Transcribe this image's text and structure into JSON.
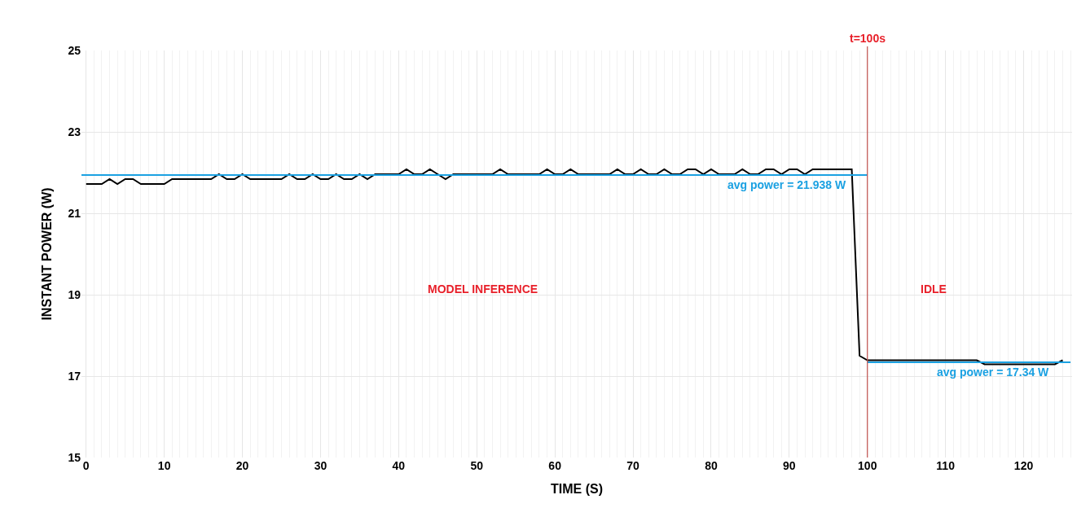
{
  "chart_data": {
    "type": "line",
    "xlabel": "TIME (S)",
    "ylabel": "INSTANT POWER (W)",
    "xlim": [
      -0.6,
      126.2
    ],
    "ylim": [
      15,
      25
    ],
    "xticks": [
      0,
      10,
      20,
      30,
      40,
      50,
      60,
      70,
      80,
      90,
      100,
      110,
      120
    ],
    "yticks": [
      15,
      17,
      19,
      21,
      23,
      25
    ],
    "grid": true,
    "legend": false,
    "marker": "none",
    "line_style": "solid",
    "series": [
      {
        "color": "#000000",
        "x": [
          0,
          1,
          2,
          3,
          4,
          5,
          6,
          7,
          8,
          9,
          10,
          11,
          12,
          13,
          14,
          15,
          16,
          17,
          18,
          19,
          20,
          21,
          22,
          23,
          24,
          25,
          26,
          27,
          28,
          29,
          30,
          31,
          32,
          33,
          34,
          35,
          36,
          37,
          38,
          39,
          40,
          41,
          42,
          43,
          44,
          45,
          46,
          47,
          48,
          49,
          50,
          51,
          52,
          53,
          54,
          55,
          56,
          57,
          58,
          59,
          60,
          61,
          62,
          63,
          64,
          65,
          66,
          67,
          68,
          69,
          70,
          71,
          72,
          73,
          74,
          75,
          76,
          77,
          78,
          79,
          80,
          81,
          82,
          83,
          84,
          85,
          86,
          87,
          88,
          89,
          90,
          91,
          92,
          93,
          94,
          95,
          96,
          97,
          98,
          99,
          100,
          101,
          102,
          103,
          104,
          105,
          106,
          107,
          108,
          109,
          110,
          111,
          112,
          113,
          114,
          115,
          116,
          117,
          118,
          119,
          120,
          121,
          122,
          123,
          124,
          125
        ],
        "values": [
          21.72,
          21.72,
          21.72,
          21.84,
          21.72,
          21.84,
          21.84,
          21.72,
          21.72,
          21.72,
          21.72,
          21.84,
          21.84,
          21.84,
          21.84,
          21.84,
          21.84,
          21.96,
          21.84,
          21.84,
          21.96,
          21.84,
          21.84,
          21.84,
          21.84,
          21.84,
          21.96,
          21.84,
          21.84,
          21.96,
          21.84,
          21.84,
          21.96,
          21.84,
          21.84,
          21.96,
          21.84,
          21.96,
          21.96,
          21.96,
          21.96,
          22.08,
          21.96,
          21.96,
          22.08,
          21.96,
          21.84,
          21.96,
          21.96,
          21.96,
          21.96,
          21.96,
          21.96,
          22.08,
          21.96,
          21.96,
          21.96,
          21.96,
          21.96,
          22.08,
          21.96,
          21.96,
          22.08,
          21.96,
          21.96,
          21.96,
          21.96,
          21.96,
          22.08,
          21.96,
          21.96,
          22.08,
          21.96,
          21.96,
          22.08,
          21.96,
          21.96,
          22.08,
          22.08,
          21.96,
          22.08,
          21.96,
          21.96,
          21.96,
          22.08,
          21.96,
          21.96,
          22.08,
          22.08,
          21.96,
          22.08,
          22.08,
          21.96,
          22.08,
          22.08,
          22.08,
          22.08,
          22.08,
          22.08,
          17.5,
          17.39,
          17.39,
          17.39,
          17.39,
          17.39,
          17.39,
          17.39,
          17.39,
          17.39,
          17.39,
          17.39,
          17.39,
          17.39,
          17.39,
          17.39,
          17.29,
          17.29,
          17.29,
          17.29,
          17.29,
          17.29,
          17.29,
          17.29,
          17.29,
          17.29,
          17.39
        ]
      },
      {
        "name": "avg power = 21.938 W",
        "color": "#1ba1e2",
        "x": [
          -0.6,
          100
        ],
        "values": [
          21.938,
          21.938
        ]
      },
      {
        "name": "avg power = 17.34 W",
        "color": "#1ba1e2",
        "x": [
          100,
          126
        ],
        "values": [
          17.34,
          17.34
        ]
      }
    ],
    "ref_lines": [
      {
        "axis": "x",
        "value": 100,
        "label": "t=100s",
        "color": "#c0504d"
      }
    ],
    "annotations": [
      "MODEL INFERENCE",
      "IDLE"
    ]
  }
}
